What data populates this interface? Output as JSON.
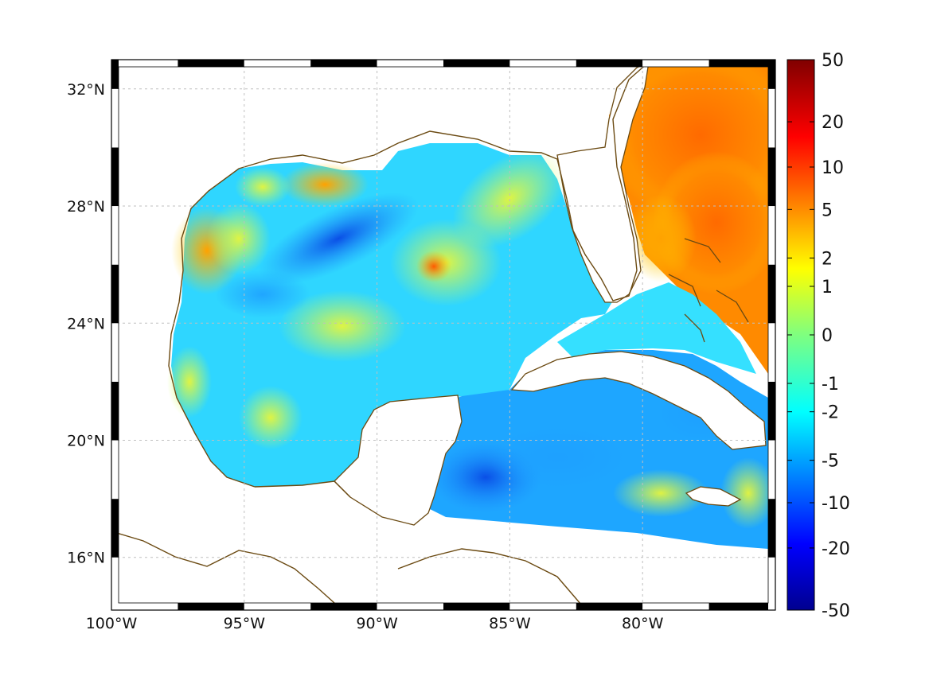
{
  "map": {
    "type": "heatmap",
    "region": "Gulf of Mexico and western Caribbean",
    "lon_range": [
      -100,
      -75
    ],
    "lat_range": [
      14.2,
      33
    ],
    "lon_ticks": [
      -100,
      -95,
      -90,
      -85,
      -80
    ],
    "lon_tick_labels": [
      "100°W",
      "95°W",
      "90°W",
      "85°W",
      "80°W"
    ],
    "lat_ticks": [
      16,
      20,
      24,
      28,
      32
    ],
    "lat_tick_labels": [
      "16°N",
      "20°N",
      "24°N",
      "28°N",
      "32°N"
    ],
    "grid": true,
    "colors": {
      "coastline": "#6b4a12",
      "grid": "#bfbfbf",
      "land": "#ffffff"
    }
  },
  "colorbar": {
    "placement": "right",
    "colormap": "jet",
    "scale": "symmetric-log",
    "range": [
      -50,
      50
    ],
    "tick_labels": [
      "50",
      "20",
      "10",
      "5",
      "2",
      "1",
      "0",
      "-1",
      "-2",
      "-5",
      "-10",
      "-20",
      "-50"
    ]
  },
  "chart_data": {
    "type": "heatmap",
    "title": "",
    "xlabel": "",
    "ylabel": "",
    "xlim": [
      -100,
      -75
    ],
    "ylim": [
      14.2,
      33
    ],
    "field_samples": [
      {
        "lon": -96.5,
        "lat": 26.4,
        "value": 4
      },
      {
        "lon": -93.5,
        "lat": 28.9,
        "value": 3
      },
      {
        "lon": -88.0,
        "lat": 26.2,
        "value": 6
      },
      {
        "lon": -91.5,
        "lat": 26.5,
        "value": -6
      },
      {
        "lon": -85.0,
        "lat": 22.0,
        "value": -3
      },
      {
        "lon": -95.5,
        "lat": 21.0,
        "value": 1
      },
      {
        "lon": -86.0,
        "lat": 18.5,
        "value": -5
      },
      {
        "lon": -78.0,
        "lat": 31.0,
        "value": 7
      },
      {
        "lon": -79.0,
        "lat": 27.0,
        "value": 4
      },
      {
        "lon": -82.0,
        "lat": 18.0,
        "value": -2
      }
    ]
  }
}
